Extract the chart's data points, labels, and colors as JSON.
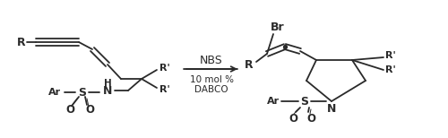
{
  "bg_color": "#ffffff",
  "line_color": "#2a2a2a",
  "text_color": "#2a2a2a",
  "figsize": [
    5.0,
    1.54
  ],
  "dpi": 100,
  "reagents_line1": "NBS",
  "reagents_line2": "10 mol %",
  "reagents_line3": "DABCO",
  "lw": 1.3,
  "lw_thick": 1.5
}
